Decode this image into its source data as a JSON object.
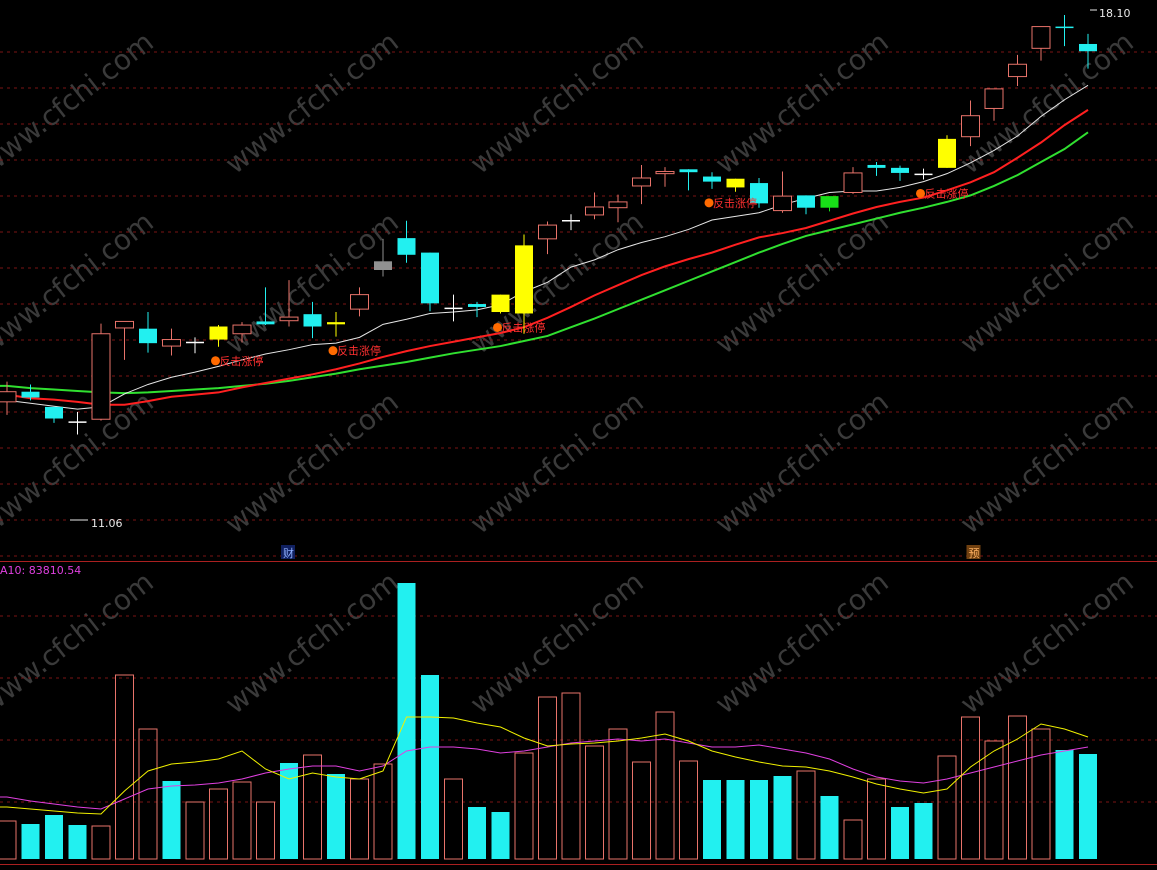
{
  "watermark": "www.cfchi.com",
  "colors": {
    "up": "#e8736a",
    "down": "#22f0f0",
    "limit_up": "#ffff00",
    "ma_white": "#e6e6e6",
    "ma_red": "#ff2020",
    "ma_green": "#30e030",
    "grid": "#7a1515",
    "marker_text": "#ff3030",
    "vma_yellow": "#f0f000",
    "vma_magenta": "#e040e0"
  },
  "chart_data": [
    {
      "type": "candlestick",
      "price_high_label": "18.10",
      "price_low_label": "11.06",
      "event_markers": [
        "财",
        "预"
      ],
      "signal_label": "反击涨停",
      "signal_candles": [
        9,
        14,
        21,
        30,
        39
      ],
      "candles": [
        {
          "o": 12.9,
          "h": 13.04,
          "l": 12.58,
          "c": 12.76,
          "k": "up"
        },
        {
          "o": 12.9,
          "h": 13.0,
          "l": 12.78,
          "c": 12.82,
          "k": "down"
        },
        {
          "o": 12.69,
          "h": 12.69,
          "l": 12.47,
          "c": 12.53,
          "k": "down"
        },
        {
          "o": 12.48,
          "h": 12.62,
          "l": 12.31,
          "c": 12.46,
          "k": "cross"
        },
        {
          "o": 12.52,
          "h": 13.84,
          "l": 12.5,
          "c": 13.7,
          "k": "up"
        },
        {
          "o": 13.78,
          "h": 13.87,
          "l": 13.34,
          "c": 13.87,
          "k": "up"
        },
        {
          "o": 13.77,
          "h": 14.0,
          "l": 13.44,
          "c": 13.57,
          "k": "down"
        },
        {
          "o": 13.53,
          "h": 13.77,
          "l": 13.4,
          "c": 13.62,
          "k": "up"
        },
        {
          "o": 13.58,
          "h": 13.65,
          "l": 13.43,
          "c": 13.58,
          "k": "cross"
        },
        {
          "o": 13.62,
          "h": 13.82,
          "l": 13.52,
          "c": 13.8,
          "k": "limit"
        },
        {
          "o": 13.7,
          "h": 13.86,
          "l": 13.58,
          "c": 13.82,
          "k": "up"
        },
        {
          "o": 13.87,
          "h": 14.34,
          "l": 13.82,
          "c": 13.83,
          "k": "down"
        },
        {
          "o": 13.88,
          "h": 14.44,
          "l": 13.8,
          "c": 13.93,
          "k": "up"
        },
        {
          "o": 13.97,
          "h": 14.14,
          "l": 13.64,
          "c": 13.8,
          "k": "down"
        },
        {
          "o": 13.83,
          "h": 14.0,
          "l": 13.66,
          "c": 13.86,
          "k": "limit"
        },
        {
          "o": 14.04,
          "h": 14.34,
          "l": 13.94,
          "c": 14.24,
          "k": "up"
        },
        {
          "o": 14.7,
          "h": 15.01,
          "l": 14.49,
          "c": 14.58,
          "k": "grey"
        },
        {
          "o": 15.02,
          "h": 15.26,
          "l": 14.68,
          "c": 14.79,
          "k": "down"
        },
        {
          "o": 14.82,
          "h": 14.82,
          "l": 14.01,
          "c": 14.12,
          "k": "down"
        },
        {
          "o": 14.05,
          "h": 14.24,
          "l": 13.87,
          "c": 14.05,
          "k": "cross"
        },
        {
          "o": 14.11,
          "h": 14.14,
          "l": 13.93,
          "c": 14.07,
          "k": "down"
        },
        {
          "o": 14.24,
          "h": 14.24,
          "l": 13.98,
          "c": 14.0,
          "k": "limit"
        },
        {
          "o": 13.98,
          "h": 15.07,
          "l": 13.7,
          "c": 14.92,
          "k": "limit"
        },
        {
          "o": 15.01,
          "h": 15.25,
          "l": 14.8,
          "c": 15.2,
          "k": "up"
        },
        {
          "o": 15.26,
          "h": 15.35,
          "l": 15.13,
          "c": 15.26,
          "k": "cross"
        },
        {
          "o": 15.34,
          "h": 15.65,
          "l": 15.28,
          "c": 15.45,
          "k": "up"
        },
        {
          "o": 15.44,
          "h": 15.62,
          "l": 15.24,
          "c": 15.52,
          "k": "up"
        },
        {
          "o": 15.74,
          "h": 16.03,
          "l": 15.49,
          "c": 15.85,
          "k": "up"
        },
        {
          "o": 15.91,
          "h": 16.0,
          "l": 15.73,
          "c": 15.94,
          "k": "up"
        },
        {
          "o": 15.97,
          "h": 15.97,
          "l": 15.68,
          "c": 15.93,
          "k": "down"
        },
        {
          "o": 15.87,
          "h": 15.93,
          "l": 15.7,
          "c": 15.8,
          "k": "down"
        },
        {
          "o": 15.84,
          "h": 15.84,
          "l": 15.66,
          "c": 15.72,
          "k": "limit"
        },
        {
          "o": 15.78,
          "h": 15.85,
          "l": 15.44,
          "c": 15.5,
          "k": "down"
        },
        {
          "o": 15.4,
          "h": 15.94,
          "l": 15.37,
          "c": 15.6,
          "k": "up"
        },
        {
          "o": 15.61,
          "h": 15.61,
          "l": 15.35,
          "c": 15.44,
          "k": "down"
        },
        {
          "o": 15.44,
          "h": 15.56,
          "l": 15.39,
          "c": 15.6,
          "k": "green"
        },
        {
          "o": 15.65,
          "h": 16.0,
          "l": 15.63,
          "c": 15.92,
          "k": "up"
        },
        {
          "o": 16.03,
          "h": 16.07,
          "l": 15.88,
          "c": 15.99,
          "k": "down"
        },
        {
          "o": 15.99,
          "h": 16.02,
          "l": 15.81,
          "c": 15.92,
          "k": "down"
        },
        {
          "o": 15.9,
          "h": 15.98,
          "l": 15.83,
          "c": 15.9,
          "k": "cross"
        },
        {
          "o": 15.99,
          "h": 16.44,
          "l": 15.99,
          "c": 16.39,
          "k": "limit"
        },
        {
          "o": 16.42,
          "h": 16.92,
          "l": 16.29,
          "c": 16.71,
          "k": "up"
        },
        {
          "o": 16.81,
          "h": 17.08,
          "l": 16.64,
          "c": 17.08,
          "k": "up"
        },
        {
          "o": 17.25,
          "h": 17.55,
          "l": 17.12,
          "c": 17.42,
          "k": "up"
        },
        {
          "o": 17.64,
          "h": 17.94,
          "l": 17.47,
          "c": 17.94,
          "k": "up"
        },
        {
          "o": 17.94,
          "h": 18.1,
          "l": 17.67,
          "c": 17.94,
          "k": "down"
        },
        {
          "o": 17.7,
          "h": 17.84,
          "l": 17.36,
          "c": 17.6,
          "k": "down"
        }
      ],
      "ma_white": [
        12.78,
        12.74,
        12.7,
        12.66,
        12.69,
        12.87,
        13.0,
        13.1,
        13.17,
        13.25,
        13.34,
        13.42,
        13.48,
        13.55,
        13.57,
        13.65,
        13.83,
        13.9,
        13.98,
        14.0,
        14.03,
        14.1,
        14.28,
        14.41,
        14.62,
        14.72,
        14.86,
        14.96,
        15.04,
        15.14,
        15.27,
        15.32,
        15.37,
        15.48,
        15.57,
        15.65,
        15.67,
        15.67,
        15.72,
        15.8,
        15.91,
        16.06,
        16.23,
        16.43,
        16.7,
        16.93,
        17.13
      ],
      "ma_red": [
        12.86,
        12.81,
        12.79,
        12.76,
        12.72,
        12.72,
        12.77,
        12.83,
        12.86,
        12.89,
        12.96,
        13.02,
        13.08,
        13.14,
        13.21,
        13.29,
        13.38,
        13.46,
        13.53,
        13.59,
        13.65,
        13.71,
        13.79,
        13.92,
        14.07,
        14.23,
        14.37,
        14.51,
        14.63,
        14.73,
        14.82,
        14.93,
        15.03,
        15.09,
        15.16,
        15.26,
        15.36,
        15.45,
        15.52,
        15.58,
        15.68,
        15.79,
        15.93,
        16.13,
        16.34,
        16.58,
        16.79
      ],
      "ma_green": [
        12.98,
        12.95,
        12.93,
        12.91,
        12.89,
        12.88,
        12.89,
        12.91,
        12.93,
        12.95,
        12.98,
        13.01,
        13.05,
        13.1,
        13.15,
        13.21,
        13.26,
        13.31,
        13.37,
        13.43,
        13.48,
        13.53,
        13.6,
        13.67,
        13.79,
        13.91,
        14.04,
        14.17,
        14.3,
        14.43,
        14.56,
        14.69,
        14.82,
        14.94,
        15.05,
        15.13,
        15.21,
        15.29,
        15.37,
        15.44,
        15.52,
        15.61,
        15.74,
        15.89,
        16.07,
        16.25,
        16.48
      ]
    },
    {
      "type": "bar",
      "indicator_label": "A10: 83810.54",
      "values": [
        {
          "v": 38,
          "k": "up"
        },
        {
          "v": 35,
          "k": "down"
        },
        {
          "v": 44,
          "k": "down"
        },
        {
          "v": 34,
          "k": "down"
        },
        {
          "v": 33,
          "k": "up"
        },
        {
          "v": 184,
          "k": "up"
        },
        {
          "v": 130,
          "k": "up"
        },
        {
          "v": 78,
          "k": "down"
        },
        {
          "v": 57,
          "k": "up"
        },
        {
          "v": 70,
          "k": "up"
        },
        {
          "v": 77,
          "k": "up"
        },
        {
          "v": 57,
          "k": "up"
        },
        {
          "v": 96,
          "k": "down"
        },
        {
          "v": 104,
          "k": "up"
        },
        {
          "v": 85,
          "k": "down"
        },
        {
          "v": 80,
          "k": "up"
        },
        {
          "v": 95,
          "k": "up"
        },
        {
          "v": 276,
          "k": "down"
        },
        {
          "v": 184,
          "k": "down"
        },
        {
          "v": 80,
          "k": "up"
        },
        {
          "v": 52,
          "k": "down"
        },
        {
          "v": 47,
          "k": "down"
        },
        {
          "v": 106,
          "k": "up"
        },
        {
          "v": 162,
          "k": "up"
        },
        {
          "v": 166,
          "k": "up"
        },
        {
          "v": 113,
          "k": "up"
        },
        {
          "v": 130,
          "k": "up"
        },
        {
          "v": 97,
          "k": "up"
        },
        {
          "v": 147,
          "k": "up"
        },
        {
          "v": 98,
          "k": "up"
        },
        {
          "v": 79,
          "k": "down"
        },
        {
          "v": 79,
          "k": "down"
        },
        {
          "v": 79,
          "k": "down"
        },
        {
          "v": 83,
          "k": "down"
        },
        {
          "v": 88,
          "k": "up"
        },
        {
          "v": 63,
          "k": "down"
        },
        {
          "v": 39,
          "k": "up"
        },
        {
          "v": 80,
          "k": "up"
        },
        {
          "v": 52,
          "k": "down"
        },
        {
          "v": 56,
          "k": "down"
        },
        {
          "v": 103,
          "k": "up"
        },
        {
          "v": 142,
          "k": "up"
        },
        {
          "v": 118,
          "k": "up"
        },
        {
          "v": 143,
          "k": "up"
        },
        {
          "v": 130,
          "k": "up"
        },
        {
          "v": 109,
          "k": "down"
        },
        {
          "v": 105,
          "k": "down"
        }
      ],
      "vma_yellow": [
        52,
        50,
        48,
        46,
        45,
        68,
        88,
        95,
        97,
        100,
        108,
        90,
        80,
        86,
        82,
        80,
        88,
        142,
        142,
        141,
        136,
        132,
        121,
        113,
        115,
        116,
        118,
        121,
        125,
        118,
        108,
        102,
        97,
        93,
        92,
        88,
        82,
        75,
        70,
        66,
        70,
        92,
        108,
        120,
        135,
        130,
        122
      ],
      "vma_magenta": [
        62,
        58,
        55,
        52,
        50,
        60,
        70,
        73,
        74,
        76,
        80,
        86,
        90,
        93,
        93,
        88,
        93,
        108,
        112,
        112,
        110,
        106,
        108,
        112,
        116,
        118,
        120,
        118,
        120,
        116,
        112,
        112,
        114,
        110,
        106,
        100,
        90,
        82,
        78,
        76,
        80,
        86,
        92,
        98,
        104,
        108,
        112
      ]
    }
  ]
}
